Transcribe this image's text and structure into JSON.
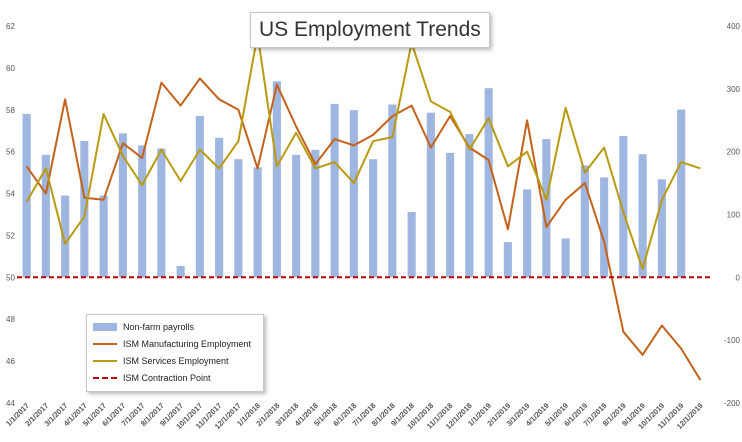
{
  "chart_data": {
    "type": "bar+line",
    "title": "US Employment Trends",
    "categories": [
      "1/1/2017",
      "2/1/2017",
      "3/1/2017",
      "4/1/2017",
      "5/1/2017",
      "6/1/2017",
      "7/1/2017",
      "8/1/2017",
      "9/1/2017",
      "10/1/2017",
      "11/1/2017",
      "12/1/2017",
      "1/1/2018",
      "2/1/2018",
      "3/1/2018",
      "4/1/2018",
      "5/1/2018",
      "6/1/2018",
      "7/1/2018",
      "8/1/2018",
      "9/1/2018",
      "10/1/2018",
      "11/1/2018",
      "12/1/2018",
      "1/1/2019",
      "2/1/2019",
      "3/1/2019",
      "4/1/2019",
      "5/1/2019",
      "6/1/2019",
      "7/1/2019",
      "8/1/2019",
      "9/1/2019",
      "10/1/2019",
      "11/1/2019",
      "12/1/2019"
    ],
    "left_axis": {
      "ylim": [
        44,
        62
      ],
      "ticks": [
        44,
        46,
        48,
        50,
        52,
        54,
        56,
        58,
        60,
        62
      ]
    },
    "right_axis": {
      "ylim": [
        -200,
        400
      ],
      "ticks": [
        -200,
        -100,
        0,
        100,
        200,
        300,
        400
      ]
    },
    "series": [
      {
        "name": "Non-farm payrolls",
        "type": "bar",
        "axis": "right",
        "color": "#9eb6e0",
        "values": [
          260,
          195,
          130,
          217,
          130,
          229,
          210,
          205,
          18,
          257,
          222,
          188,
          175,
          312,
          195,
          203,
          276,
          266,
          188,
          275,
          104,
          262,
          198,
          228,
          301,
          56,
          140,
          220,
          62,
          178,
          159,
          225,
          196,
          156,
          267,
          null
        ]
      },
      {
        "name": "ISM Manufacturing Employment",
        "type": "line",
        "axis": "left",
        "color": "#c4621b",
        "values": [
          55.3,
          54.0,
          58.5,
          53.8,
          53.7,
          56.4,
          55.7,
          59.3,
          58.2,
          59.5,
          58.5,
          58.0,
          55.2,
          59.2,
          57.2,
          55.4,
          56.6,
          56.3,
          56.8,
          57.7,
          58.2,
          56.2,
          57.7,
          56.2,
          55.6,
          52.3,
          57.5,
          52.4,
          53.7,
          54.5,
          51.7,
          47.4,
          46.3,
          47.7,
          46.6,
          45.1
        ]
      },
      {
        "name": "ISM Services Employment",
        "type": "line",
        "axis": "left",
        "color": "#b89b10",
        "values": [
          53.6,
          55.2,
          51.6,
          52.9,
          57.8,
          55.8,
          54.4,
          56.1,
          54.6,
          56.1,
          55.2,
          56.5,
          61.6,
          55.3,
          56.9,
          55.2,
          55.5,
          54.5,
          56.5,
          56.7,
          61.2,
          58.4,
          57.9,
          56.1,
          57.6,
          55.3,
          56.0,
          53.7,
          58.1,
          55.0,
          56.2,
          53.1,
          50.4,
          53.7,
          55.5,
          55.2
        ]
      },
      {
        "name": "ISM Contraction Point",
        "type": "line",
        "axis": "left",
        "style": "dashed",
        "color": "#c00000",
        "values": [
          50,
          50,
          50,
          50,
          50,
          50,
          50,
          50,
          50,
          50,
          50,
          50,
          50,
          50,
          50,
          50,
          50,
          50,
          50,
          50,
          50,
          50,
          50,
          50,
          50,
          50,
          50,
          50,
          50,
          50,
          50,
          50,
          50,
          50,
          50,
          50
        ]
      }
    ],
    "legend_position": "bottom-left",
    "grid": false
  }
}
